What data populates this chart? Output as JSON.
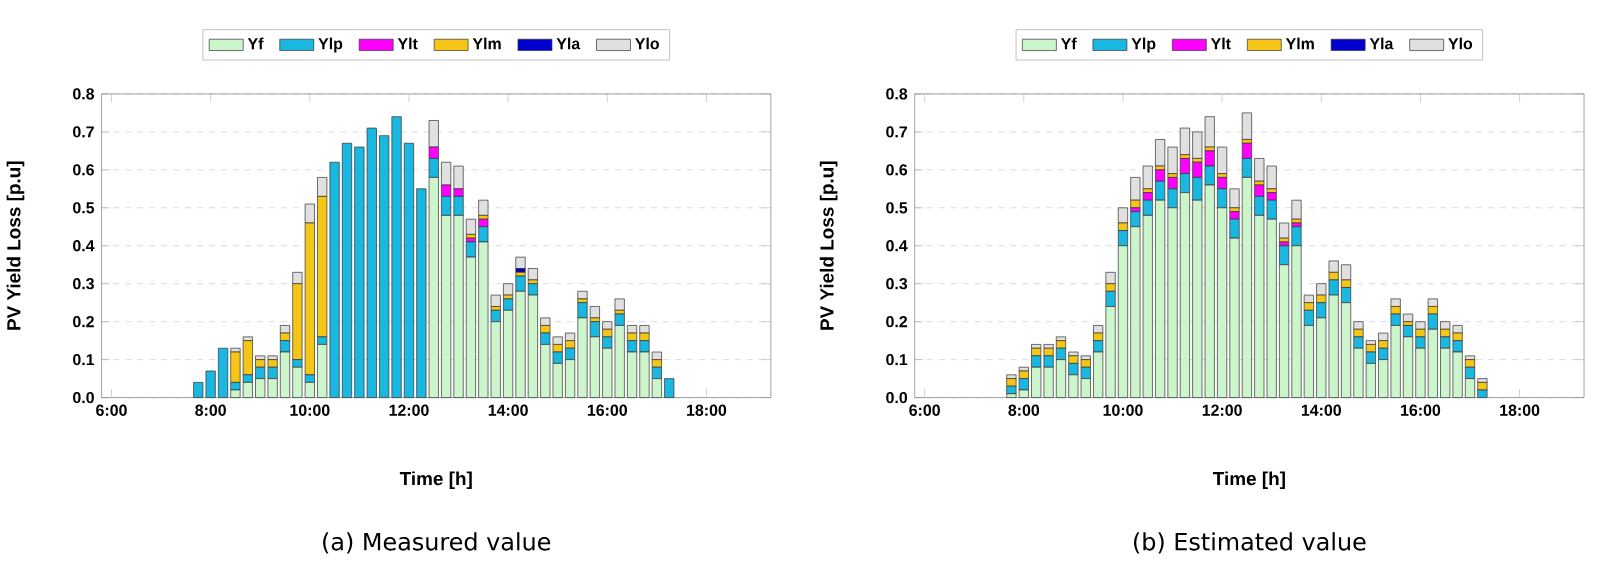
{
  "chart_data": [
    {
      "type": "bar",
      "stacked": true,
      "xlabel": "Time [h]",
      "ylabel": "PV Yield Loss [p.u]",
      "annotations": [
        "(a) Measured value"
      ],
      "grid": "y",
      "legend": "top",
      "xlim": [
        5.8,
        19.3
      ],
      "ylim": [
        0,
        0.8
      ],
      "xticks": [
        {
          "value": 6,
          "label": "6:00"
        },
        {
          "value": 8,
          "label": "8:00"
        },
        {
          "value": 10,
          "label": "10:00"
        },
        {
          "value": 12,
          "label": "12:00"
        },
        {
          "value": 14,
          "label": "14:00"
        },
        {
          "value": 16,
          "label": "16:00"
        },
        {
          "value": 18,
          "label": "18:00"
        }
      ],
      "yticks": [
        {
          "value": 0,
          "label": "0.0"
        },
        0.1,
        0.2,
        0.3,
        0.4,
        0.5,
        0.6,
        0.7,
        0.8
      ],
      "x": [
        7.75,
        8,
        8.25,
        8.5,
        8.75,
        9,
        9.25,
        9.5,
        9.75,
        10,
        10.25,
        10.5,
        10.75,
        11,
        11.25,
        11.5,
        11.75,
        12,
        12.25,
        12.5,
        12.75,
        13,
        13.25,
        13.5,
        13.75,
        14,
        14.25,
        14.5,
        14.75,
        15,
        15.25,
        15.5,
        15.75,
        16,
        16.25,
        16.5,
        16.75,
        17,
        17.25
      ],
      "series": [
        {
          "name": "Yf",
          "color": "#ccf5cc",
          "values": [
            0,
            0,
            0,
            0.02,
            0.04,
            0.05,
            0.05,
            0.12,
            0.08,
            0.04,
            0.14,
            0,
            0,
            0,
            0,
            0,
            0,
            0,
            0,
            0.58,
            0.48,
            0.48,
            0.37,
            0.41,
            0.2,
            0.23,
            0.28,
            0.27,
            0.14,
            0.09,
            0.1,
            0.21,
            0.16,
            0.13,
            0.19,
            0.12,
            0.12,
            0.05,
            0
          ]
        },
        {
          "name": "Ylp",
          "color": "#1ab8e0",
          "values": [
            0.04,
            0.07,
            0.13,
            0.02,
            0.02,
            0.03,
            0.03,
            0.03,
            0.02,
            0.02,
            0.02,
            0.62,
            0.67,
            0.66,
            0.71,
            0.69,
            0.74,
            0.67,
            0.55,
            0.05,
            0.05,
            0.05,
            0.04,
            0.04,
            0.03,
            0.03,
            0.04,
            0.03,
            0.03,
            0.03,
            0.03,
            0.04,
            0.04,
            0.03,
            0.03,
            0.03,
            0.03,
            0.03,
            0.05
          ]
        },
        {
          "name": "Ylt",
          "color": "#ff00ff",
          "values": [
            0,
            0,
            0,
            0,
            0,
            0,
            0,
            0,
            0,
            0,
            0,
            0,
            0,
            0,
            0,
            0,
            0,
            0,
            0,
            0.03,
            0.03,
            0.02,
            0.01,
            0.02,
            0,
            0,
            0,
            0,
            0,
            0,
            0,
            0,
            0,
            0,
            0,
            0,
            0,
            0,
            0
          ]
        },
        {
          "name": "Ylm",
          "color": "#f5c518",
          "values": [
            0,
            0,
            0,
            0.08,
            0.09,
            0.02,
            0.02,
            0.02,
            0.2,
            0.4,
            0.37,
            0,
            0,
            0,
            0,
            0,
            0,
            0,
            0,
            0,
            0,
            0,
            0.01,
            0.01,
            0.01,
            0.01,
            0.01,
            0.01,
            0.02,
            0.02,
            0.02,
            0.01,
            0.01,
            0.02,
            0.01,
            0.02,
            0.02,
            0.02,
            0
          ]
        },
        {
          "name": "Yla",
          "color": "#0000cc",
          "values": [
            0,
            0,
            0,
            0,
            0,
            0,
            0,
            0,
            0,
            0,
            0,
            0,
            0,
            0,
            0,
            0,
            0,
            0,
            0,
            0,
            0,
            0,
            0,
            0,
            0,
            0,
            0.01,
            0,
            0,
            0,
            0,
            0,
            0,
            0,
            0,
            0,
            0,
            0,
            0
          ]
        },
        {
          "name": "Ylo",
          "color": "#e0e0e0",
          "values": [
            0,
            0,
            0,
            0.01,
            0.01,
            0.01,
            0.01,
            0.02,
            0.03,
            0.05,
            0.05,
            0,
            0,
            0,
            0,
            0,
            0,
            0,
            0,
            0.07,
            0.06,
            0.06,
            0.04,
            0.04,
            0.03,
            0.03,
            0.03,
            0.03,
            0.02,
            0.02,
            0.02,
            0.02,
            0.03,
            0.02,
            0.03,
            0.02,
            0.02,
            0.02,
            0
          ]
        }
      ]
    },
    {
      "type": "bar",
      "stacked": true,
      "xlabel": "Time [h]",
      "ylabel": "PV Yield Loss [p.u]",
      "annotations": [
        "(b) Estimated value"
      ],
      "grid": "y",
      "legend": "top",
      "xlim": [
        5.8,
        19.3
      ],
      "ylim": [
        0,
        0.8
      ],
      "xticks": [
        {
          "value": 6,
          "label": "6:00"
        },
        {
          "value": 8,
          "label": "8:00"
        },
        {
          "value": 10,
          "label": "10:00"
        },
        {
          "value": 12,
          "label": "12:00"
        },
        {
          "value": 14,
          "label": "14:00"
        },
        {
          "value": 16,
          "label": "16:00"
        },
        {
          "value": 18,
          "label": "18:00"
        }
      ],
      "yticks": [
        {
          "value": 0,
          "label": "0.0"
        },
        0.1,
        0.2,
        0.3,
        0.4,
        0.5,
        0.6,
        0.7,
        0.8
      ],
      "x": [
        7.75,
        8,
        8.25,
        8.5,
        8.75,
        9,
        9.25,
        9.5,
        9.75,
        10,
        10.25,
        10.5,
        10.75,
        11,
        11.25,
        11.5,
        11.75,
        12,
        12.25,
        12.5,
        12.75,
        13,
        13.25,
        13.5,
        13.75,
        14,
        14.25,
        14.5,
        14.75,
        15,
        15.25,
        15.5,
        15.75,
        16,
        16.25,
        16.5,
        16.75,
        17,
        17.25
      ],
      "series": [
        {
          "name": "Yf",
          "color": "#ccf5cc",
          "values": [
            0.01,
            0.02,
            0.08,
            0.08,
            0.1,
            0.06,
            0.05,
            0.12,
            0.24,
            0.4,
            0.45,
            0.48,
            0.52,
            0.5,
            0.54,
            0.52,
            0.56,
            0.5,
            0.42,
            0.58,
            0.48,
            0.47,
            0.35,
            0.4,
            0.19,
            0.21,
            0.27,
            0.25,
            0.13,
            0.09,
            0.1,
            0.19,
            0.16,
            0.13,
            0.18,
            0.13,
            0.12,
            0.05,
            0
          ]
        },
        {
          "name": "Ylp",
          "color": "#1ab8e0",
          "values": [
            0.02,
            0.03,
            0.03,
            0.03,
            0.03,
            0.03,
            0.03,
            0.03,
            0.04,
            0.04,
            0.04,
            0.04,
            0.05,
            0.05,
            0.05,
            0.06,
            0.05,
            0.05,
            0.05,
            0.05,
            0.05,
            0.05,
            0.05,
            0.05,
            0.04,
            0.04,
            0.04,
            0.04,
            0.03,
            0.03,
            0.03,
            0.03,
            0.03,
            0.03,
            0.04,
            0.03,
            0.03,
            0.03,
            0.02
          ]
        },
        {
          "name": "Ylt",
          "color": "#ff00ff",
          "values": [
            0,
            0,
            0,
            0,
            0,
            0,
            0,
            0,
            0,
            0,
            0.01,
            0.02,
            0.03,
            0.03,
            0.04,
            0.04,
            0.04,
            0.03,
            0.02,
            0.04,
            0.03,
            0.02,
            0.01,
            0.01,
            0,
            0,
            0,
            0,
            0,
            0,
            0,
            0,
            0,
            0,
            0,
            0,
            0,
            0,
            0
          ]
        },
        {
          "name": "Ylm",
          "color": "#f5c518",
          "values": [
            0.02,
            0.02,
            0.02,
            0.02,
            0.02,
            0.02,
            0.02,
            0.02,
            0.02,
            0.02,
            0.02,
            0.01,
            0.01,
            0.01,
            0.01,
            0.01,
            0.01,
            0.01,
            0.01,
            0.01,
            0.01,
            0.01,
            0.01,
            0.01,
            0.02,
            0.02,
            0.02,
            0.02,
            0.02,
            0.02,
            0.02,
            0.02,
            0.01,
            0.02,
            0.02,
            0.02,
            0.02,
            0.02,
            0.02
          ]
        },
        {
          "name": "Yla",
          "color": "#0000cc",
          "values": [
            0,
            0,
            0,
            0,
            0,
            0,
            0,
            0,
            0,
            0,
            0,
            0,
            0,
            0,
            0,
            0,
            0,
            0,
            0,
            0,
            0,
            0,
            0,
            0,
            0,
            0,
            0,
            0,
            0,
            0,
            0,
            0,
            0,
            0,
            0,
            0,
            0,
            0,
            0
          ]
        },
        {
          "name": "Ylo",
          "color": "#e0e0e0",
          "values": [
            0.01,
            0.01,
            0.01,
            0.01,
            0.01,
            0.01,
            0.01,
            0.02,
            0.03,
            0.04,
            0.06,
            0.06,
            0.07,
            0.07,
            0.07,
            0.07,
            0.08,
            0.07,
            0.05,
            0.07,
            0.06,
            0.06,
            0.04,
            0.05,
            0.02,
            0.03,
            0.03,
            0.04,
            0.02,
            0.01,
            0.02,
            0.02,
            0.02,
            0.02,
            0.02,
            0.02,
            0.02,
            0.01,
            0.01
          ]
        }
      ]
    }
  ]
}
